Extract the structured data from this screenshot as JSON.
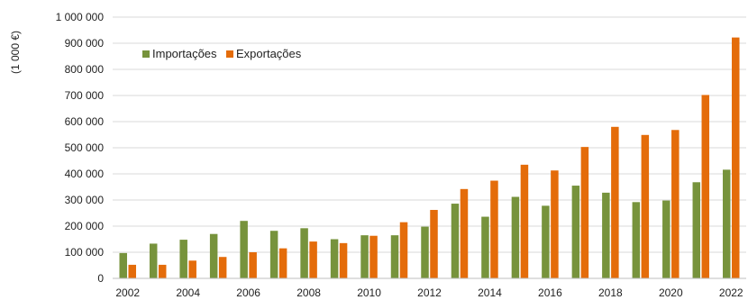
{
  "chart_data": {
    "type": "bar",
    "ylabel": "(1 000 €)",
    "ylim": [
      0,
      1000000
    ],
    "yticks": [
      0,
      100000,
      200000,
      300000,
      400000,
      500000,
      600000,
      700000,
      800000,
      900000,
      1000000
    ],
    "ytick_labels": [
      "0",
      "100 000",
      "200 000",
      "300 000",
      "400 000",
      "500 000",
      "600 000",
      "700 000",
      "800 000",
      "900 000",
      "1 000 000"
    ],
    "categories": [
      "2002",
      "2003",
      "2004",
      "2005",
      "2006",
      "2007",
      "2008",
      "2009",
      "2010",
      "2011",
      "2012",
      "2013",
      "2014",
      "2015",
      "2016",
      "2017",
      "2018",
      "2019",
      "2020",
      "2021",
      "2022"
    ],
    "xtick_labels": [
      "2002",
      "",
      "2004",
      "",
      "2006",
      "",
      "2008",
      "",
      "2010",
      "",
      "2012",
      "",
      "2014",
      "",
      "2016",
      "",
      "2018",
      "",
      "2020",
      "",
      "2022"
    ],
    "series": [
      {
        "name": "Importações",
        "color": "#77933c",
        "values": [
          97000,
          133000,
          148000,
          170000,
          220000,
          182000,
          192000,
          150000,
          165000,
          165000,
          198000,
          286000,
          236000,
          312000,
          278000,
          355000,
          328000,
          292000,
          298000,
          368000,
          416000
        ]
      },
      {
        "name": "Exportações",
        "color": "#e46c0a",
        "values": [
          52000,
          52000,
          68000,
          82000,
          100000,
          115000,
          141000,
          135000,
          163000,
          215000,
          262000,
          342000,
          374000,
          435000,
          413000,
          503000,
          580000,
          549000,
          568000,
          702000,
          922000
        ]
      }
    ],
    "grid": "horizontal",
    "legend_position": "top-left"
  }
}
